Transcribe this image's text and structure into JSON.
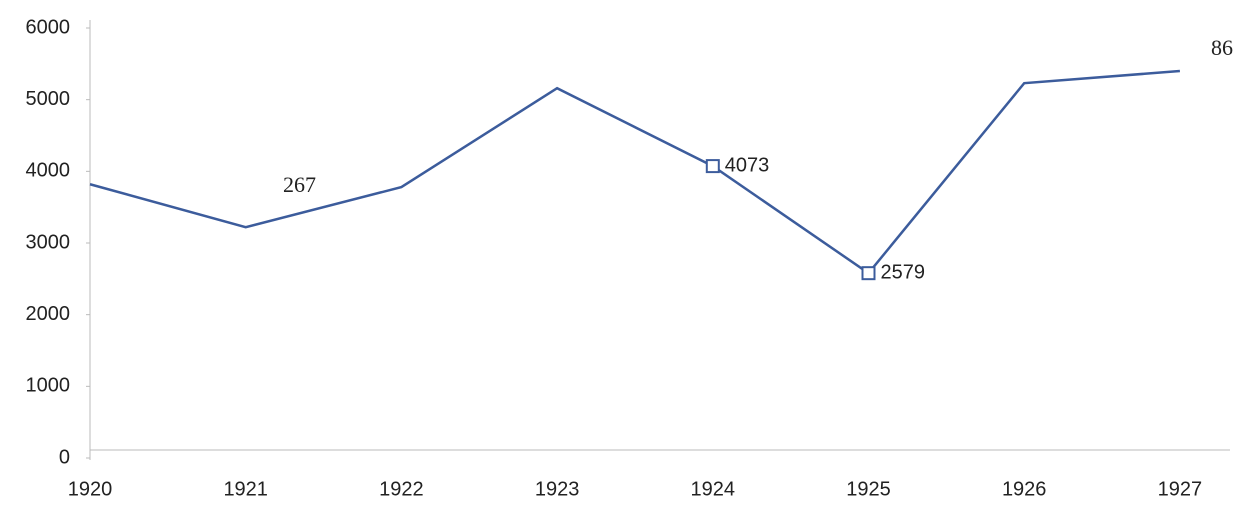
{
  "chart_data": {
    "type": "line",
    "categories": [
      "1920",
      "1921",
      "1922",
      "1923",
      "1924",
      "1925",
      "1926",
      "1927"
    ],
    "series": [
      {
        "color": "#3c5c9c",
        "values": [
          3820,
          3220,
          3780,
          5160,
          4073,
          2579,
          5230,
          5400
        ],
        "value_labels": [
          null,
          null,
          null,
          null,
          "4073",
          "2579",
          null,
          null
        ]
      }
    ],
    "ylim": [
      0,
      6000
    ],
    "yticks": [
      0,
      1000,
      2000,
      3000,
      4000,
      5000,
      6000
    ],
    "annotations": [
      "267",
      "86"
    ]
  }
}
